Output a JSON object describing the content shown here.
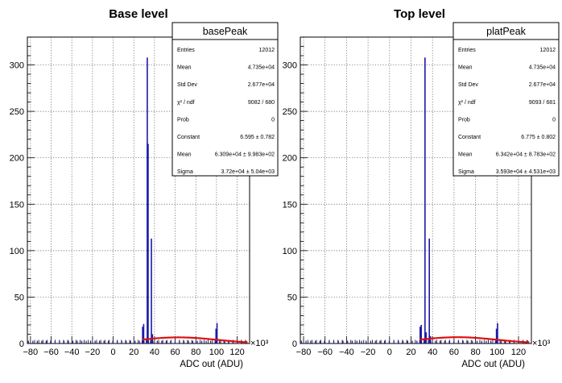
{
  "chart_data": [
    {
      "type": "histogram",
      "title": "Base level",
      "xlabel": "ADC out (ADU)",
      "x_multiplier": "×10³",
      "xlim": [
        -83,
        132
      ],
      "ylim": [
        0,
        330
      ],
      "x_ticks": [
        -80,
        -60,
        -40,
        -20,
        0,
        20,
        40,
        60,
        80,
        100,
        120
      ],
      "y_ticks": [
        0,
        50,
        100,
        150,
        200,
        250,
        300
      ],
      "grid": true,
      "histogram": {
        "color": "#1a1aa8",
        "bins": [
          {
            "x": 28.5,
            "count": 18
          },
          {
            "x": 29.5,
            "count": 21
          },
          {
            "x": 33,
            "count": 308
          },
          {
            "x": 33.8,
            "count": 215
          },
          {
            "x": 37,
            "count": 113
          },
          {
            "x": 38,
            "count": 10
          },
          {
            "x": 99.5,
            "count": 16
          },
          {
            "x": 100.5,
            "count": 22
          }
        ],
        "baseline_height": 3
      },
      "fit": {
        "color": "#dd1111",
        "constant": 6.595,
        "mean": 63.09,
        "sigma": 37.2,
        "range": [
          28,
          130
        ]
      },
      "stats_box": {
        "name": "basePeak",
        "rows": [
          {
            "label": "Entries",
            "value": "12012"
          },
          {
            "label": "Mean",
            "value": "4.735e+04"
          },
          {
            "label": "Std Dev",
            "value": "2.677e+04"
          },
          {
            "label": "χ² / ndf",
            "value": "9082 / 680"
          },
          {
            "label": "Prob",
            "value": "0"
          },
          {
            "label": "Constant",
            "value": "6.595 ± 0.782"
          },
          {
            "label": "Mean",
            "value": "6.309e+04 ± 9.983e+02"
          },
          {
            "label": "Sigma",
            "value": "3.72e+04 ± 5.04e+03"
          }
        ]
      }
    },
    {
      "type": "histogram",
      "title": "Top level",
      "xlabel": "ADC out (ADU)",
      "x_multiplier": "×10³",
      "xlim": [
        -83,
        132
      ],
      "ylim": [
        0,
        330
      ],
      "x_ticks": [
        -80,
        -60,
        -40,
        -20,
        0,
        20,
        40,
        60,
        80,
        100,
        120
      ],
      "y_ticks": [
        0,
        50,
        100,
        150,
        200,
        250,
        300
      ],
      "grid": true,
      "histogram": {
        "color": "#1a1aa8",
        "bins": [
          {
            "x": 28.5,
            "count": 18
          },
          {
            "x": 29.5,
            "count": 20
          },
          {
            "x": 33,
            "count": 308
          },
          {
            "x": 34,
            "count": 12
          },
          {
            "x": 37,
            "count": 113
          },
          {
            "x": 38,
            "count": 8
          },
          {
            "x": 99.5,
            "count": 16
          },
          {
            "x": 100.5,
            "count": 22
          }
        ],
        "baseline_height": 3
      },
      "fit": {
        "color": "#dd1111",
        "constant": 6.775,
        "mean": 63.42,
        "sigma": 35.93,
        "range": [
          28,
          130
        ]
      },
      "stats_box": {
        "name": "platPeak",
        "rows": [
          {
            "label": "Entries",
            "value": "12012"
          },
          {
            "label": "Mean",
            "value": "4.735e+04"
          },
          {
            "label": "Std Dev",
            "value": "2.677e+04"
          },
          {
            "label": "χ² / ndf",
            "value": "9093 / 681"
          },
          {
            "label": "Prob",
            "value": "0"
          },
          {
            "label": "Constant",
            "value": "6.775 ± 0.802"
          },
          {
            "label": "Mean",
            "value": "6.342e+04 ± 8.783e+02"
          },
          {
            "label": "Sigma",
            "value": "3.593e+04 ± 4.531e+03"
          }
        ]
      }
    }
  ]
}
